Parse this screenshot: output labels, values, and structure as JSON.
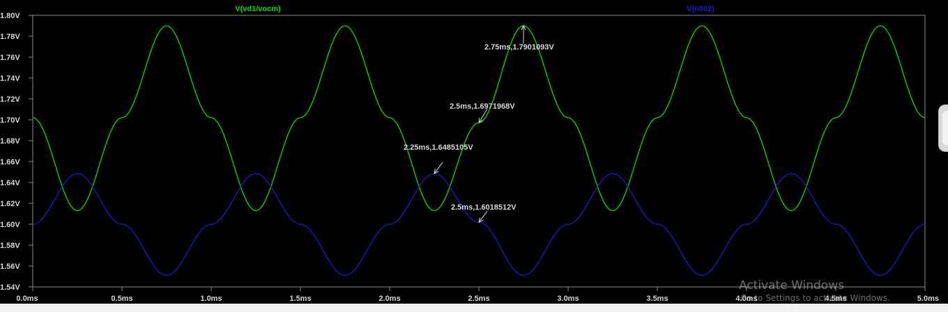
{
  "chart_data": {
    "type": "line",
    "xlabel": "",
    "ylabel": "",
    "xlim": [
      0,
      5
    ],
    "ylim": [
      1.54,
      1.8
    ],
    "x_ticks": [
      "0.0ms",
      "0.5ms",
      "1.0ms",
      "1.5ms",
      "2.0ms",
      "2.5ms",
      "3.0ms",
      "3.5ms",
      "4.0ms",
      "4.5ms",
      "5.0ms"
    ],
    "y_ticks": [
      "1.54V",
      "1.56V",
      "1.58V",
      "1.60V",
      "1.62V",
      "1.64V",
      "1.66V",
      "1.68V",
      "1.70V",
      "1.72V",
      "1.74V",
      "1.76V",
      "1.78V",
      "1.80V"
    ],
    "grid": false,
    "series": [
      {
        "name": "V(vd1/vocm)",
        "color": "#00e000",
        "x_unit": "ms",
        "x": [
          0,
          0.25,
          0.5,
          0.75,
          1.0,
          1.25,
          1.5,
          1.75,
          2.0,
          2.25,
          2.5,
          2.75,
          3.0,
          3.25,
          3.5,
          3.75,
          4.0,
          4.25,
          4.5,
          4.75,
          5.0
        ],
        "y": [
          1.702,
          1.613,
          1.702,
          1.79,
          1.702,
          1.613,
          1.702,
          1.79,
          1.702,
          1.613,
          1.6972,
          1.7901,
          1.702,
          1.613,
          1.702,
          1.79,
          1.702,
          1.613,
          1.702,
          1.79,
          1.702
        ]
      },
      {
        "name": "V(n002)",
        "color": "#1a1acc",
        "x_unit": "ms",
        "x": [
          0,
          0.25,
          0.5,
          0.75,
          1.0,
          1.25,
          1.5,
          1.75,
          2.0,
          2.25,
          2.5,
          2.75,
          3.0,
          3.25,
          3.5,
          3.75,
          4.0,
          4.25,
          4.5,
          4.75,
          5.0
        ],
        "y": [
          1.6,
          1.6485,
          1.6,
          1.551,
          1.6,
          1.6485,
          1.6,
          1.551,
          1.6,
          1.6485,
          1.6019,
          1.551,
          1.6,
          1.6485,
          1.6,
          1.551,
          1.6,
          1.6485,
          1.6,
          1.551,
          1.6
        ]
      }
    ],
    "annotations": [
      {
        "text": "2.75ms,1.7901093V",
        "x": 2.75,
        "y": 1.7901093
      },
      {
        "text": "2.5ms,1.6971968V",
        "x": 2.5,
        "y": 1.6971968
      },
      {
        "text": "2.25ms,1.6485105V",
        "x": 2.25,
        "y": 1.6485105
      },
      {
        "text": "2.5ms,1.6018512V",
        "x": 2.5,
        "y": 1.6018512
      }
    ]
  },
  "watermark": {
    "line1": "Activate Windows",
    "line2": "Go to Settings to activate Windows."
  }
}
